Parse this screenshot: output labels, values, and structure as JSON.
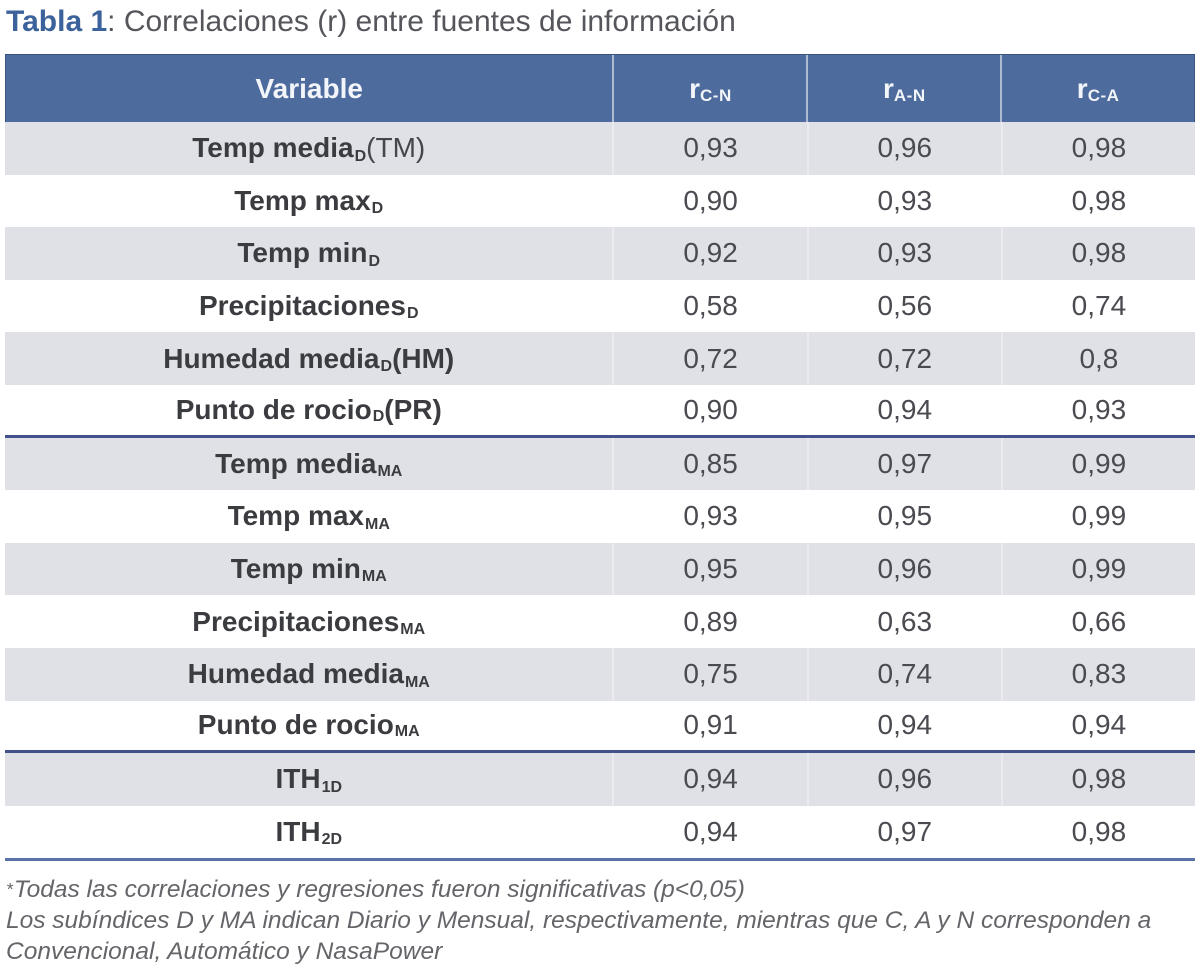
{
  "title": {
    "label": "Tabla 1",
    "rest": ": Correlaciones (r) entre fuentes de información"
  },
  "table": {
    "header": {
      "variable_label": "Variable",
      "value_columns": [
        {
          "base": "r",
          "sub": "C-N"
        },
        {
          "base": "r",
          "sub": "A-N"
        },
        {
          "base": "r",
          "sub": "C-A"
        }
      ]
    },
    "rows": [
      {
        "name": "Temp media",
        "sub": "D",
        "suffix": "(TM)",
        "suffix_weight": "light",
        "values": [
          "0,93",
          "0,96",
          "0,98"
        ],
        "section_end": false
      },
      {
        "name": "Temp max",
        "sub": "D",
        "suffix": "",
        "values": [
          "0,90",
          "0,93",
          "0,98"
        ],
        "section_end": false
      },
      {
        "name": "Temp min",
        "sub": "D",
        "suffix": "",
        "values": [
          "0,92",
          "0,93",
          "0,98"
        ],
        "section_end": false
      },
      {
        "name": "Precipitaciones",
        "sub": "D",
        "suffix": "",
        "values": [
          "0,58",
          "0,56",
          "0,74"
        ],
        "section_end": false
      },
      {
        "name": "Humedad media",
        "sub": "D",
        "suffix": "(HM)",
        "suffix_weight": "bold",
        "values": [
          "0,72",
          "0,72",
          "0,8"
        ],
        "section_end": false
      },
      {
        "name": "Punto de rocio",
        "sub": "D",
        "suffix": "(PR)",
        "suffix_weight": "bold",
        "values": [
          "0,90",
          "0,94",
          "0,93"
        ],
        "section_end": true
      },
      {
        "name": "Temp media",
        "sub": "MA",
        "suffix": "",
        "values": [
          "0,85",
          "0,97",
          "0,99"
        ],
        "section_end": false
      },
      {
        "name": "Temp max",
        "sub": "MA",
        "suffix": "",
        "values": [
          "0,93",
          "0,95",
          "0,99"
        ],
        "section_end": false
      },
      {
        "name": "Temp min",
        "sub": "MA",
        "suffix": "",
        "values": [
          "0,95",
          "0,96",
          "0,99"
        ],
        "section_end": false
      },
      {
        "name": "Precipitaciones",
        "sub": "MA",
        "suffix": "",
        "values": [
          "0,89",
          "0,63",
          "0,66"
        ],
        "section_end": false
      },
      {
        "name": "Humedad media",
        "sub": "MA",
        "suffix": "",
        "values": [
          "0,75",
          "0,74",
          "0,83"
        ],
        "section_end": false
      },
      {
        "name": "Punto de rocio",
        "sub": "MA",
        "suffix": "",
        "values": [
          "0,91",
          "0,94",
          "0,94"
        ],
        "section_end": true
      },
      {
        "name": "ITH",
        "sub": "1D",
        "suffix": "",
        "values": [
          "0,94",
          "0,96",
          "0,98"
        ],
        "section_end": false
      },
      {
        "name": "ITH",
        "sub": "2D",
        "suffix": "",
        "values": [
          "0,94",
          "0,97",
          "0,98"
        ],
        "section_end": true
      }
    ]
  },
  "footnotes": {
    "star": "*",
    "line1": "Todas las correlaciones y regresiones fueron significativas (p<0,05)",
    "line2": "Los subíndices D y MA indican Diario y Mensual, respectivamente, mientras que C, A y N corresponden a Convencional, Automático y NasaPower"
  },
  "colors": {
    "header_bg": "#4d6b9c",
    "zebra_row": "#e0e0e7",
    "section_divider": "#42518a",
    "table_bottom_border": "#5b74a6",
    "title_accent": "#3b629b",
    "body_text": "#3b3c40"
  }
}
